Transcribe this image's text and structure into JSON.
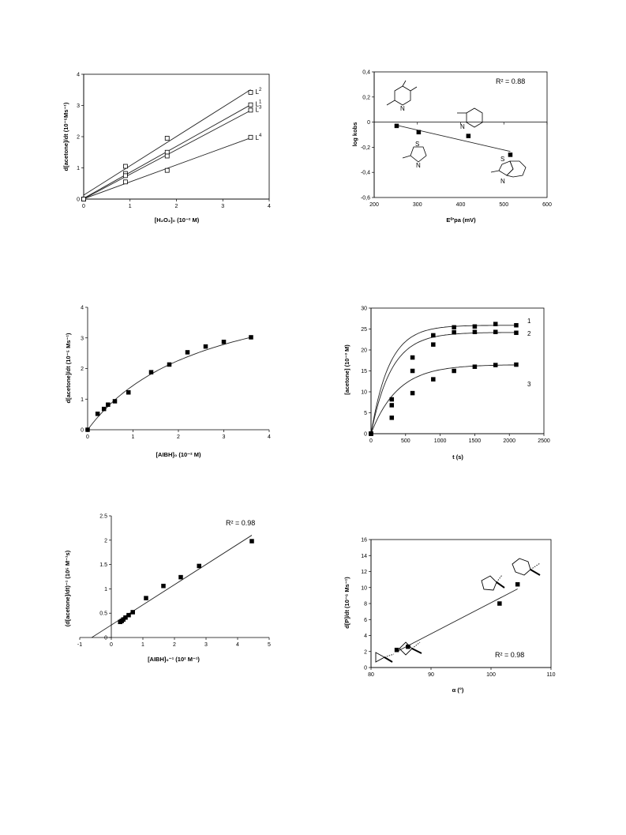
{
  "chart_data": [
    {
      "id": "c1",
      "type": "scatter",
      "xlabel": "[H₂O₂]₀ (10⁻² M)",
      "ylabel": "d[acetone]/dt (10⁻⁵Ms⁻¹)",
      "xlim": [
        0,
        4
      ],
      "ylim": [
        0,
        4
      ],
      "xticks": [
        "0",
        "1",
        "2",
        "3",
        "4"
      ],
      "yticks": [
        "0",
        "1",
        "2",
        "3",
        "4"
      ],
      "marker": "open-square",
      "series": [
        {
          "name": "L2",
          "label_base": "L",
          "label_sup": "2",
          "x": [
            0,
            0.9,
            1.8,
            3.6
          ],
          "y": [
            0,
            1.05,
            1.95,
            3.42
          ],
          "fit": "line"
        },
        {
          "name": "L1",
          "label_base": "L",
          "label_sup": "1",
          "x": [
            0,
            0.9,
            1.8,
            3.6
          ],
          "y": [
            0,
            0.82,
            1.5,
            3.02
          ],
          "fit": "line"
        },
        {
          "name": "L3",
          "label_base": "L",
          "label_sup": "3",
          "x": [
            0,
            0.9,
            1.8,
            3.6
          ],
          "y": [
            0,
            0.75,
            1.38,
            2.85
          ],
          "fit": "line"
        },
        {
          "name": "L4",
          "label_base": "L",
          "label_sup": "4",
          "x": [
            0,
            0.9,
            1.8,
            3.6
          ],
          "y": [
            0,
            0.55,
            0.92,
            1.98
          ],
          "fit": "line"
        }
      ]
    },
    {
      "id": "c2",
      "type": "scatter",
      "xlabel": "E⁰′pa (mV)",
      "ylabel": "log kobs",
      "xlim": [
        200,
        600
      ],
      "ylim": [
        -0.6,
        0.4
      ],
      "xticks": [
        "200",
        "300",
        "400",
        "500",
        "600"
      ],
      "yticks": [
        "-0,6",
        "-0,4",
        "-0,2",
        "0",
        "0,2",
        "0,4"
      ],
      "marker": "filled-square",
      "annotation": "R² = 0.88",
      "series": [
        {
          "name": "",
          "x": [
            252,
            303,
            418,
            515
          ],
          "y": [
            -0.03,
            -0.08,
            -0.11,
            -0.26
          ],
          "fit": "line"
        }
      ],
      "structures": [
        "2,4-dimethylpyridine",
        "2-methylpyridine",
        "2-methylthiazole",
        "2-methylbenzothiazole"
      ]
    },
    {
      "id": "c3",
      "type": "scatter",
      "xlabel": "[AIBH]₀ (10⁻² M)",
      "ylabel": "d[acetone]/dt (10⁻⁵ Ms⁻¹)",
      "xlim": [
        0,
        4
      ],
      "ylim": [
        0,
        4
      ],
      "xticks": [
        "0",
        "1",
        "2",
        "3",
        "4"
      ],
      "yticks": [
        "0",
        "1",
        "2",
        "3",
        "4"
      ],
      "marker": "filled-square",
      "series": [
        {
          "name": "",
          "x": [
            0,
            0.22,
            0.36,
            0.45,
            0.6,
            0.9,
            1.4,
            1.8,
            2.2,
            2.6,
            3.0,
            3.6
          ],
          "y": [
            0,
            0.52,
            0.68,
            0.82,
            0.93,
            1.22,
            1.88,
            2.13,
            2.53,
            2.72,
            2.87,
            3.02
          ],
          "fit": "curve"
        }
      ]
    },
    {
      "id": "c4",
      "type": "scatter",
      "xlabel": "t (s)",
      "ylabel": "[acetone] (10⁻³ M)",
      "xlim": [
        0,
        2500
      ],
      "ylim": [
        0,
        30
      ],
      "xticks": [
        "0",
        "500",
        "1000",
        "1500",
        "2000",
        "2500"
      ],
      "yticks": [
        "0",
        "5",
        "10",
        "15",
        "20",
        "25",
        "30"
      ],
      "marker": "filled-square",
      "series": [
        {
          "name": "1",
          "x": [
            0,
            300,
            600,
            900,
            1200,
            1500,
            1800,
            2100
          ],
          "y": [
            0,
            8.2,
            18.2,
            23.5,
            25.4,
            25.6,
            26.2,
            25.9
          ],
          "plateau": 25.9,
          "rate": 0.0038
        },
        {
          "name": "2",
          "x": [
            0,
            300,
            600,
            900,
            1200,
            1500,
            1800,
            2100
          ],
          "y": [
            0,
            6.8,
            15.0,
            21.3,
            24.2,
            24.3,
            24.3,
            24.1
          ],
          "plateau": 24.2,
          "rate": 0.0034
        },
        {
          "name": "3",
          "x": [
            0,
            300,
            600,
            900,
            1200,
            1500,
            1800,
            2100
          ],
          "y": [
            0,
            3.8,
            9.7,
            13.0,
            15.0,
            16.0,
            16.4,
            16.5
          ],
          "plateau": 16.5,
          "rate": 0.0026
        }
      ]
    },
    {
      "id": "c5",
      "type": "scatter",
      "xlabel": "[AIBH]₀⁻¹ (10² M⁻¹)",
      "ylabel": "(d[acetone]/dt)⁻¹ (10⁵ M⁻¹s)",
      "xlim": [
        -1,
        5
      ],
      "ylim": [
        0,
        2.5
      ],
      "xticks": [
        "-1",
        "0",
        "1",
        "2",
        "3",
        "4",
        "5"
      ],
      "yticks": [
        "0",
        "0.5",
        "1",
        "1.5",
        "2",
        "2.5"
      ],
      "marker": "filled-square",
      "annotation": "R² = 0.98",
      "series": [
        {
          "name": "",
          "x": [
            0.28,
            0.33,
            0.38,
            0.45,
            0.55,
            0.68,
            1.1,
            1.65,
            2.2,
            2.78,
            4.45
          ],
          "y": [
            0.32,
            0.34,
            0.37,
            0.41,
            0.46,
            0.52,
            0.81,
            1.06,
            1.24,
            1.47,
            1.98
          ],
          "fit": "line"
        }
      ]
    },
    {
      "id": "c6",
      "type": "scatter",
      "xlabel": "α (°)",
      "ylabel": "d[P]/dt (10⁻⁶ Ms⁻¹)",
      "xlim": [
        80,
        115
      ],
      "ylim": [
        0,
        16
      ],
      "xticks": [
        "80",
        "90",
        "100",
        "110"
      ],
      "yticks": [
        "0",
        "2",
        "4",
        "6",
        "8",
        "10",
        "12",
        "14",
        "16"
      ],
      "marker": "filled-square",
      "annotation": "R² = 0.98",
      "series": [
        {
          "name": "",
          "x": [
            85,
            87.2,
            105,
            108.5
          ],
          "y": [
            2.2,
            2.6,
            8.0,
            10.4
          ],
          "fit": "line"
        }
      ],
      "structures": [
        "cyclopropyl",
        "cyclobutyl",
        "cyclopentyl",
        "cyclohexyl"
      ]
    }
  ]
}
